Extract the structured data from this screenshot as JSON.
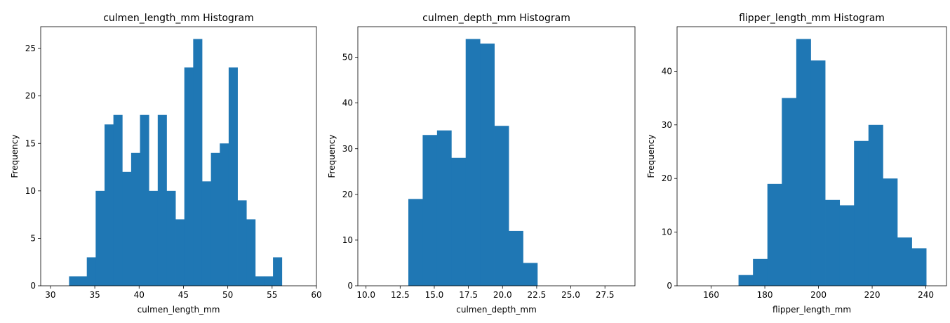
{
  "chart_data": [
    {
      "type": "bar",
      "title": "culmen_length_mm Histogram",
      "xlabel": "culmen_length_mm",
      "ylabel": "Frequency",
      "xlim": [
        28.9,
        60.0
      ],
      "ylim": [
        0,
        27.3
      ],
      "xticks": [
        30,
        35,
        40,
        45,
        50,
        55,
        60
      ],
      "yticks": [
        0,
        5,
        10,
        15,
        20,
        25
      ],
      "bin_start": 32.1,
      "bin_width": 1.0,
      "values": [
        1,
        1,
        3,
        10,
        17,
        18,
        12,
        14,
        18,
        10,
        18,
        10,
        7,
        23,
        26,
        11,
        14,
        15,
        23,
        9,
        7,
        1,
        1,
        3
      ],
      "color": "#1f77b4"
    },
    {
      "type": "bar",
      "title": "culmen_depth_mm Histogram",
      "xlabel": "culmen_depth_mm",
      "ylabel": "Frequency",
      "xlim": [
        9.4,
        29.7
      ],
      "ylim": [
        0,
        56.7
      ],
      "xticks": [
        "10.0",
        "12.5",
        "15.0",
        "17.5",
        "20.0",
        "22.5",
        "25.0",
        "27.5"
      ],
      "yticks": [
        0,
        10,
        20,
        30,
        40,
        50
      ],
      "bin_start": 13.1,
      "bin_width": 1.05,
      "values": [
        19,
        33,
        34,
        28,
        54,
        53,
        35,
        12,
        5
      ],
      "color": "#1f77b4"
    },
    {
      "type": "bar",
      "title": "flipper_length_mm Histogram",
      "xlabel": "flipper_length_mm",
      "ylabel": "Frequency",
      "xlim": [
        147.3,
        247.7
      ],
      "ylim": [
        0,
        48.3
      ],
      "xticks": [
        160,
        180,
        200,
        220,
        240
      ],
      "yticks": [
        0,
        10,
        20,
        30,
        40
      ],
      "bin_start": 170.2,
      "bin_width": 5.38,
      "values": [
        2,
        5,
        19,
        35,
        46,
        42,
        16,
        15,
        27,
        30,
        20,
        9,
        7
      ],
      "color": "#1f77b4"
    }
  ]
}
